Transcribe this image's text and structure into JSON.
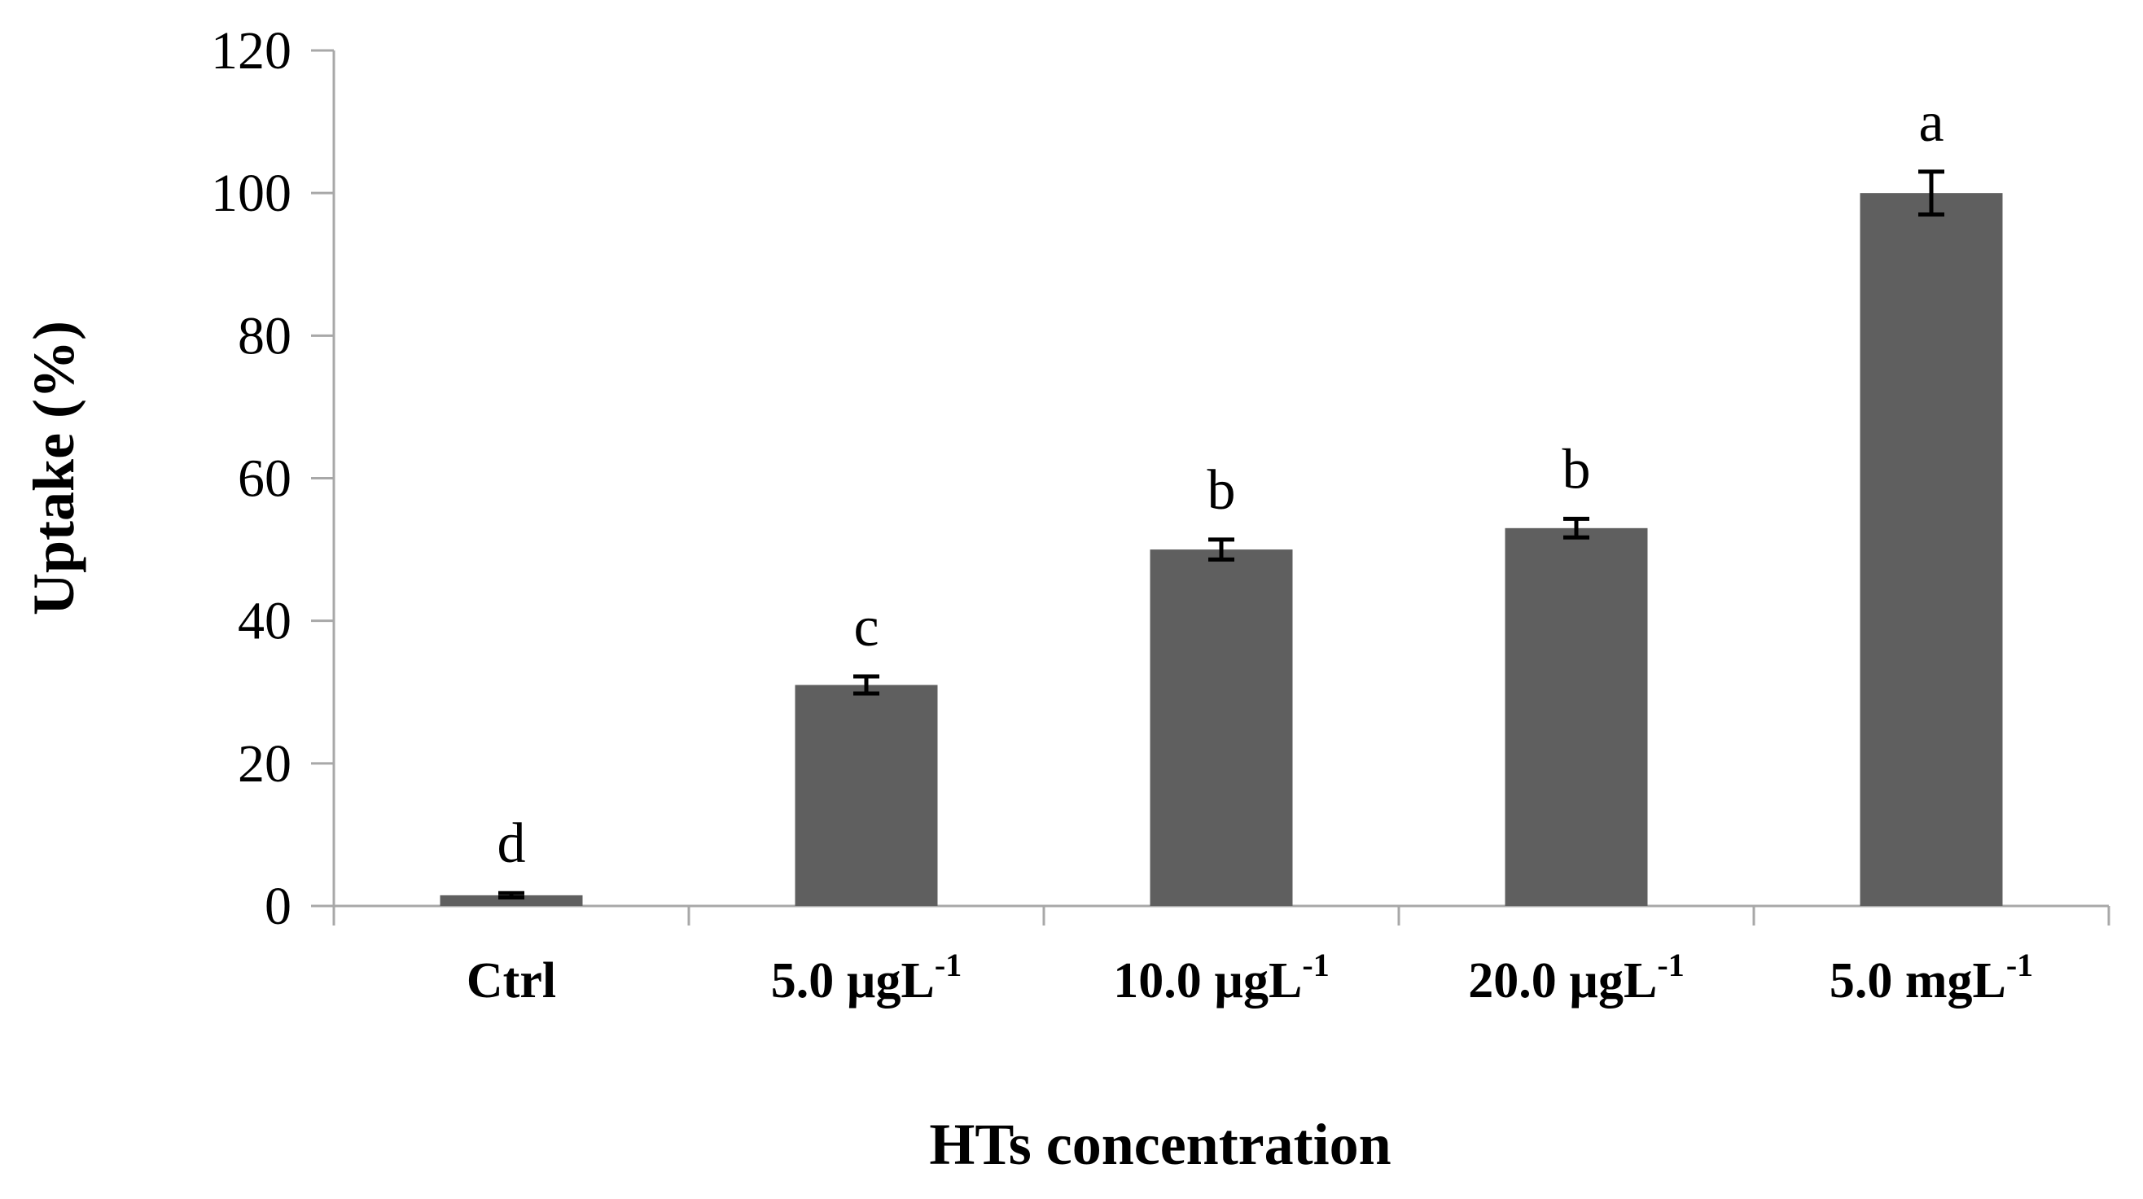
{
  "chart_data": {
    "type": "bar",
    "categories": [
      {
        "main": "Ctrl",
        "sup": ""
      },
      {
        "main": "5.0 µgL",
        "sup": "-1"
      },
      {
        "main": "10.0 µgL",
        "sup": "-1"
      },
      {
        "main": "20.0 µgL",
        "sup": "-1"
      },
      {
        "main": "5.0 mgL",
        "sup": "-1"
      }
    ],
    "values": [
      1.5,
      31,
      50,
      53,
      100
    ],
    "errors": [
      0.3,
      1.2,
      1.4,
      1.3,
      3.0
    ],
    "significance_letters": [
      "d",
      "c",
      "b",
      "b",
      "a"
    ],
    "xlabel": "HTs concentration",
    "ylabel": "Uptake  (%)",
    "ylim": [
      0,
      120
    ],
    "yticks": [
      0,
      20,
      40,
      60,
      80,
      100,
      120
    ],
    "grid": false,
    "bar_color": "#5f5f5f"
  }
}
